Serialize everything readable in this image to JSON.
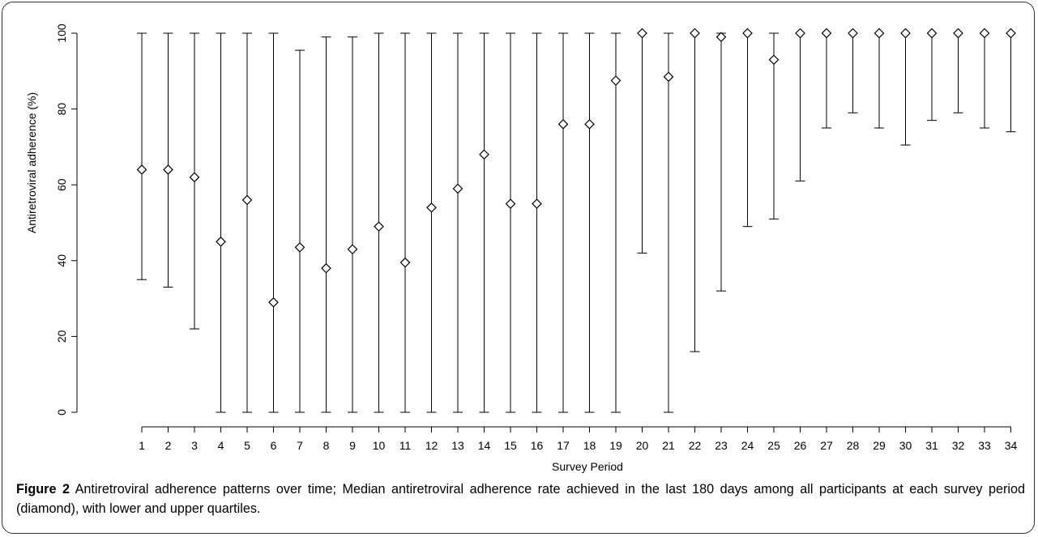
{
  "chart_data": {
    "type": "errorbar",
    "xlabel": "Survey Period",
    "ylabel": "Antiretroviral adherence (%)",
    "ylim": [
      0,
      100
    ],
    "yticks": [
      0,
      20,
      40,
      60,
      80,
      100
    ],
    "categories": [
      "1",
      "2",
      "3",
      "4",
      "5",
      "6",
      "7",
      "8",
      "9",
      "10",
      "11",
      "12",
      "13",
      "14",
      "15",
      "16",
      "17",
      "18",
      "19",
      "20",
      "21",
      "22",
      "23",
      "24",
      "25",
      "26",
      "27",
      "28",
      "29",
      "30",
      "31",
      "32",
      "33",
      "34"
    ],
    "series": [
      {
        "marker": "diamond",
        "median": [
          64,
          64,
          62,
          45,
          56,
          29,
          43.5,
          38,
          43,
          49,
          39.5,
          54,
          59,
          68,
          55,
          55,
          76,
          76,
          87.5,
          100,
          88.5,
          100,
          99,
          100,
          93,
          100,
          100,
          100,
          100,
          100,
          100,
          100,
          100,
          100
        ],
        "lower": [
          35,
          33,
          22,
          0,
          0,
          0,
          0,
          0,
          0,
          0,
          0,
          0,
          0,
          0,
          0,
          0,
          0,
          0,
          0,
          42,
          0,
          16,
          32,
          49,
          51,
          61,
          75,
          79,
          75,
          70.5,
          77,
          79,
          75,
          74
        ],
        "upper": [
          100,
          100,
          100,
          100,
          100,
          100,
          95.5,
          99,
          99,
          100,
          100,
          100,
          100,
          100,
          100,
          100,
          100,
          100,
          100,
          100,
          100,
          100,
          100,
          100,
          100,
          100,
          100,
          100,
          100,
          100,
          100,
          100,
          100,
          100
        ]
      }
    ],
    "grid": false,
    "legend": "none"
  },
  "caption": {
    "label": "Figure 2",
    "text": " Antiretroviral adherence patterns over time; Median antiretroviral adherence rate achieved in the last 180 days among all participants at each survey period (diamond), with lower and upper quartiles."
  }
}
